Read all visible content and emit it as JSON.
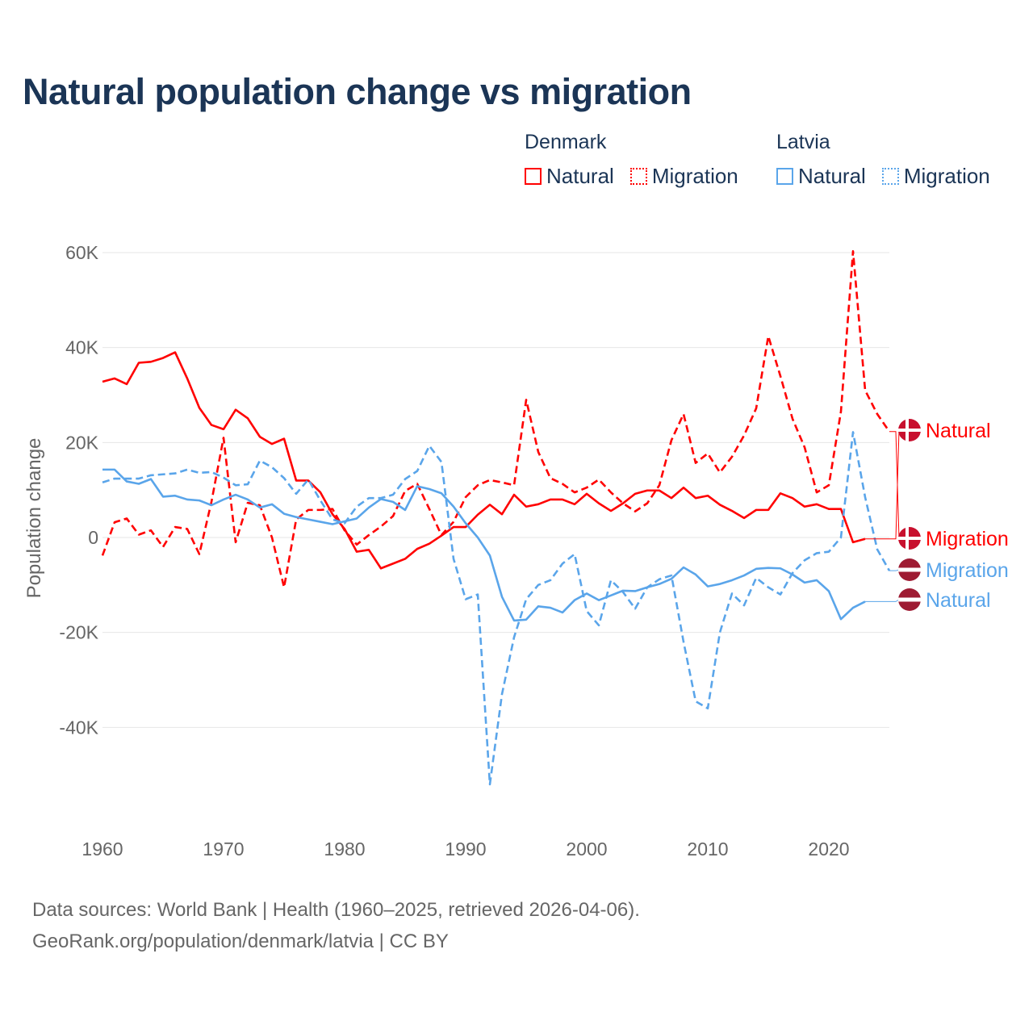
{
  "title": "Natural population change vs migration",
  "legend": [
    {
      "group": "Denmark",
      "items": [
        {
          "label": "Natural",
          "style": "solid",
          "color": "#ff0000"
        },
        {
          "label": "Migration",
          "style": "dotted",
          "color": "#ff0000"
        }
      ]
    },
    {
      "group": "Latvia",
      "items": [
        {
          "label": "Natural",
          "style": "solid",
          "color": "#5aa5ea"
        },
        {
          "label": "Migration",
          "style": "dotted",
          "color": "#5aa5ea"
        }
      ]
    }
  ],
  "source_line1": "Data sources: World Bank | Health (1960–2025, retrieved 2026-04-06).",
  "source_line2": "GeoRank.org/population/denmark/latvia | CC BY",
  "chart_data": {
    "type": "line",
    "title": "Natural population change vs migration",
    "xlabel": "",
    "ylabel": "Population change",
    "units": "thousands of people",
    "xlim": [
      1960,
      2025
    ],
    "ylim": [
      -60,
      60
    ],
    "x_ticks": [
      1960,
      1970,
      1980,
      1990,
      2000,
      2010,
      2020
    ],
    "x_tick_labels": [
      "1960",
      "1970",
      "1980",
      "1990",
      "2000",
      "2010",
      "2020"
    ],
    "y_ticks": [
      -40,
      -20,
      0,
      20,
      40,
      60
    ],
    "y_tick_labels": [
      "-40K",
      "-20K",
      "0",
      "20K",
      "40K",
      "60K"
    ],
    "grid": true,
    "legend_placement": "top-right",
    "series": [
      {
        "name": "Denmark Natural",
        "end_label": "Natural",
        "country": "Denmark",
        "color": "#ff0000",
        "dash": false,
        "start": 1960,
        "values": [
          32.8,
          33.5,
          32.3,
          36.8,
          37.0,
          37.8,
          39.0,
          33.5,
          27.3,
          23.7,
          22.8,
          26.9,
          25.1,
          21.2,
          19.7,
          20.8,
          12.0,
          12.0,
          9.5,
          4.9,
          1.8,
          -3.0,
          -2.6,
          -6.5,
          -5.5,
          -4.5,
          -2.4,
          -1.3,
          0.4,
          2.2,
          2.2,
          4.8,
          6.9,
          4.9,
          9.0,
          6.5,
          7.0,
          8.0,
          8.0,
          7.0,
          9.2,
          7.2,
          5.6,
          7.2,
          9.2,
          9.9,
          9.9,
          8.3,
          10.5,
          8.3,
          8.8,
          6.9,
          5.6,
          4.1,
          5.8,
          5.8,
          9.3,
          8.3,
          6.5,
          7.0,
          6.0,
          6.0,
          -1.0,
          -0.3
        ]
      },
      {
        "name": "Denmark Migration",
        "end_label": "Migration",
        "country": "Denmark",
        "color": "#ff0000",
        "dash": true,
        "start": 1960,
        "values": [
          -3.8,
          3.2,
          4.0,
          0.6,
          1.5,
          -2.0,
          2.2,
          1.8,
          -3.5,
          7.5,
          21.0,
          -1.0,
          7.3,
          6.8,
          0.0,
          -10.5,
          3.8,
          5.8,
          5.8,
          6.0,
          1.5,
          -1.5,
          0.5,
          2.3,
          4.5,
          9.8,
          11.3,
          6.0,
          0.5,
          3.3,
          8.5,
          11.0,
          12.1,
          11.6,
          11.0,
          29.0,
          18.0,
          12.5,
          11.3,
          9.5,
          10.5,
          12.2,
          9.5,
          7.2,
          5.5,
          7.2,
          11.0,
          20.5,
          26.0,
          15.7,
          17.7,
          13.7,
          17.0,
          21.5,
          27.2,
          42.4,
          34.0,
          25.0,
          19.0,
          9.5,
          11.0,
          26.5,
          60.3,
          31.0,
          26.0,
          22.3
        ]
      },
      {
        "name": "Latvia Migration",
        "end_label": "Migration",
        "country": "Latvia",
        "color": "#5aa5ea",
        "dash": true,
        "start": 1960,
        "values": [
          11.6,
          12.4,
          12.4,
          12.4,
          13.1,
          13.3,
          13.5,
          14.3,
          13.6,
          13.8,
          12.6,
          11.0,
          11.2,
          16.2,
          14.8,
          12.5,
          9.2,
          12.2,
          7.8,
          3.8,
          3.0,
          6.5,
          8.3,
          8.3,
          9.0,
          12.3,
          14.0,
          19.3,
          15.9,
          -4.5,
          -13.0,
          -12.0,
          -52.0,
          -33.0,
          -21.0,
          -13.0,
          -10.0,
          -9.0,
          -5.5,
          -3.5,
          -15.5,
          -18.5,
          -9.0,
          -11.5,
          -15.0,
          -10.5,
          -8.8,
          -8.0,
          -22.0,
          -34.5,
          -36.0,
          -20.0,
          -11.8,
          -14.3,
          -8.5,
          -10.5,
          -12.0,
          -7.5,
          -4.8,
          -3.3,
          -3.0,
          0.0,
          22.2,
          8.5,
          -2.5,
          -7.0
        ]
      },
      {
        "name": "Latvia Natural",
        "end_label": "Natural",
        "country": "Latvia",
        "color": "#5aa5ea",
        "dash": false,
        "start": 1960,
        "values": [
          14.3,
          14.3,
          11.8,
          11.3,
          12.3,
          8.6,
          8.8,
          8.0,
          7.8,
          6.8,
          8.0,
          9.0,
          8.0,
          6.3,
          7.0,
          5.0,
          4.3,
          3.8,
          3.3,
          2.8,
          3.4,
          4.0,
          6.3,
          8.1,
          7.5,
          5.8,
          10.8,
          10.2,
          9.3,
          6.5,
          3.0,
          0.0,
          -3.8,
          -12.5,
          -17.5,
          -17.3,
          -14.5,
          -14.8,
          -15.8,
          -13.2,
          -11.8,
          -13.2,
          -12.2,
          -11.2,
          -11.3,
          -10.5,
          -9.8,
          -8.7,
          -6.3,
          -7.8,
          -10.3,
          -9.8,
          -9.0,
          -8.0,
          -6.6,
          -6.4,
          -6.5,
          -7.8,
          -9.5,
          -9.0,
          -11.3,
          -17.2,
          -14.8,
          -13.5
        ]
      }
    ]
  }
}
